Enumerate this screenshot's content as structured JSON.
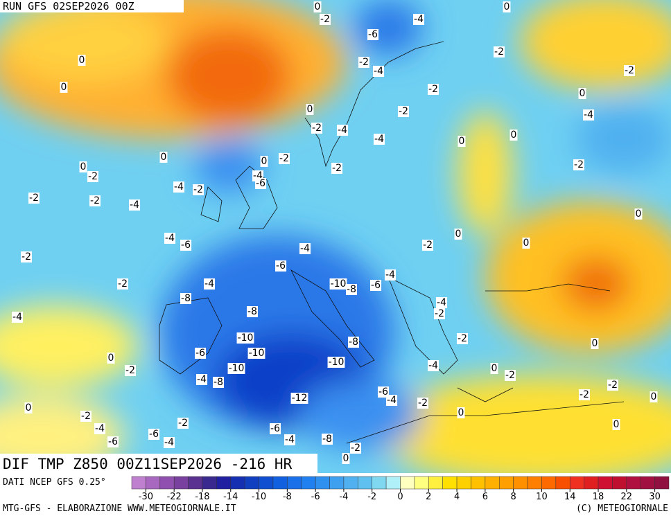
{
  "header": {
    "run": "RUN GFS 02SEP2026 00Z"
  },
  "map": {
    "title": "DIF TMP Z850 00Z11SEP2026 -216 HR",
    "contour_labels": [
      0,
      -2,
      -4,
      -6,
      0,
      0,
      0,
      -2,
      -2,
      -4,
      -2,
      -2,
      0,
      -2,
      0,
      -2,
      -4,
      -4,
      -4,
      0,
      0,
      0,
      -2,
      0,
      0,
      -2,
      -2,
      -2,
      -4,
      -6,
      -4,
      -2,
      -2,
      -2,
      -4,
      0,
      0,
      -4,
      -6,
      -2,
      -4,
      0,
      -2,
      -6,
      -4,
      -2,
      -4,
      -10,
      -8,
      -6,
      -8,
      -4,
      -2,
      -4,
      -8,
      -10,
      -8,
      -2,
      0,
      0,
      -10,
      -6,
      -10,
      -10,
      -4,
      0,
      -2,
      -2,
      -4,
      -8,
      -2,
      -6,
      -4,
      -2,
      -12,
      0,
      -2,
      0,
      0,
      -2,
      0,
      -2,
      -4,
      -6,
      -6,
      -4,
      -6,
      -4,
      -8,
      -2,
      0
    ]
  },
  "footer": {
    "source": "DATI NCEP GFS 0.25°",
    "credit": "MTG-GFS - ELABORAZIONE WWW.METEOGIORNALE.IT",
    "copyright": "(C) METEOGIORNALE"
  },
  "colorbar": {
    "labels": [
      -30,
      -22,
      -18,
      -14,
      -10,
      -8,
      -6,
      -4,
      -2,
      0,
      2,
      4,
      6,
      8,
      10,
      14,
      18,
      22,
      30
    ],
    "colors": [
      "#c080d0",
      "#a868c0",
      "#9050b0",
      "#7a40a0",
      "#5a3090",
      "#3a2a90",
      "#2020a0",
      "#1530b0",
      "#1040c0",
      "#1050d0",
      "#1060e0",
      "#1a70e8",
      "#2080f0",
      "#3090f0",
      "#40a0f0",
      "#50b0f0",
      "#60c0f0",
      "#80d8f0",
      "#b0f0f8",
      "#ffffc0",
      "#ffff80",
      "#fff040",
      "#ffe000",
      "#ffd000",
      "#ffc000",
      "#ffb000",
      "#ffa000",
      "#ff9000",
      "#ff8000",
      "#ff6a00",
      "#f85000",
      "#f03020",
      "#e02020",
      "#d01030",
      "#c01030",
      "#b01040",
      "#a01040",
      "#901040"
    ]
  }
}
